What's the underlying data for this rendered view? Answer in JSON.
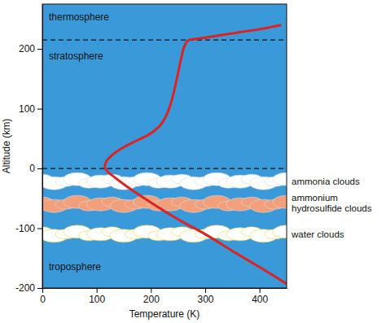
{
  "chart_data": {
    "type": "line",
    "x_label": "Temperature (K)",
    "y_label": "Altitude (km)",
    "xlim": [
      0,
      450
    ],
    "ylim": [
      -200,
      275
    ],
    "xticks": [
      0,
      100,
      200,
      300,
      400
    ],
    "yticks": [
      -200,
      -100,
      0,
      100,
      200
    ],
    "x": [
      450,
      400,
      350,
      300,
      250,
      200,
      160,
      135,
      120,
      115,
      118,
      128,
      145,
      170,
      195,
      215,
      228,
      237,
      244,
      250,
      256,
      262,
      268,
      300,
      350,
      400,
      440
    ],
    "series": [
      {
        "color": "#dd2222",
        "values": [
          -193,
          -165,
          -138,
          -110,
          -85,
          -57,
          -33,
          -16,
          -5,
          3,
          12,
          22,
          33,
          45,
          56,
          70,
          88,
          110,
          135,
          160,
          185,
          205,
          214,
          219,
          226,
          233,
          240
        ]
      }
    ],
    "boundaries": [
      0,
      215
    ],
    "layer_labels": [
      "thermosphere",
      "stratosphere",
      "troposphere"
    ],
    "cloud_layers": [
      {
        "label": "ammonia clouds",
        "altitude": -22,
        "color": "#ffffff"
      },
      {
        "label": "ammonium hydrosulfide clouds",
        "altitude": -60,
        "color": "#f2a07c"
      },
      {
        "label": "water clouds",
        "altitude": -110,
        "color": "#ffffff"
      }
    ]
  }
}
